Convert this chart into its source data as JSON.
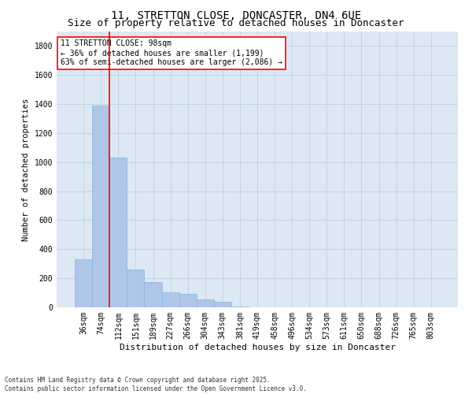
{
  "title": "11, STRETTON CLOSE, DONCASTER, DN4 6UE",
  "subtitle": "Size of property relative to detached houses in Doncaster",
  "xlabel": "Distribution of detached houses by size in Doncaster",
  "ylabel": "Number of detached properties",
  "footer1": "Contains HM Land Registry data © Crown copyright and database right 2025.",
  "footer2": "Contains public sector information licensed under the Open Government Licence v3.0.",
  "bins": [
    "36sqm",
    "74sqm",
    "112sqm",
    "151sqm",
    "189sqm",
    "227sqm",
    "266sqm",
    "304sqm",
    "343sqm",
    "381sqm",
    "419sqm",
    "458sqm",
    "496sqm",
    "534sqm",
    "573sqm",
    "611sqm",
    "650sqm",
    "688sqm",
    "726sqm",
    "765sqm",
    "803sqm"
  ],
  "values": [
    330,
    1390,
    1030,
    260,
    175,
    105,
    95,
    55,
    40,
    5,
    0,
    0,
    0,
    0,
    0,
    0,
    0,
    0,
    0,
    0,
    0
  ],
  "bar_color": "#aec6e8",
  "bar_edge_color": "#8ab4d8",
  "property_line_bin_index": 1,
  "property_line_color": "red",
  "annotation_text": "11 STRETTON CLOSE: 98sqm\n← 36% of detached houses are smaller (1,199)\n63% of semi-detached houses are larger (2,086) →",
  "annotation_box_color": "red",
  "ylim": [
    0,
    1900
  ],
  "yticks": [
    0,
    200,
    400,
    600,
    800,
    1000,
    1200,
    1400,
    1600,
    1800
  ],
  "grid_color": "#c0d0e0",
  "background_color": "#dce8f4",
  "title_fontsize": 10,
  "subtitle_fontsize": 9,
  "xlabel_fontsize": 8,
  "ylabel_fontsize": 7.5,
  "tick_fontsize": 7,
  "annotation_fontsize": 7,
  "footer_fontsize": 5.5
}
